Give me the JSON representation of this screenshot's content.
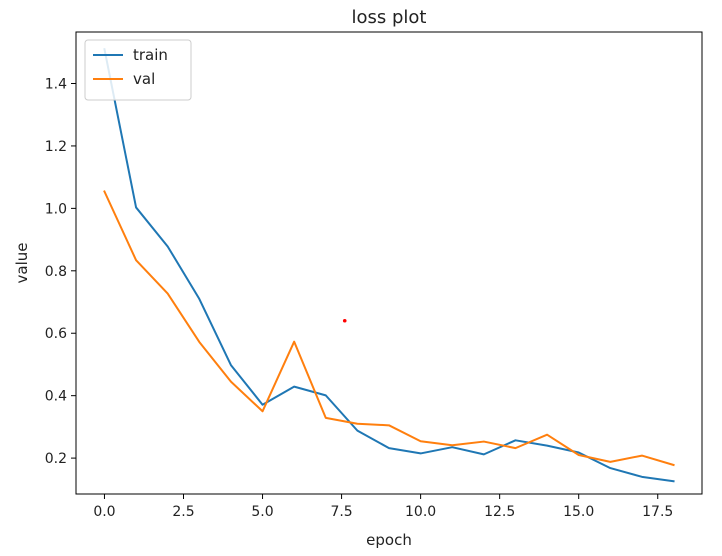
{
  "chart_data": {
    "type": "line",
    "title": "loss plot",
    "xlabel": "epoch",
    "ylabel": "value",
    "xlim": [
      -0.9,
      18.9
    ],
    "ylim": [
      0.085,
      1.565
    ],
    "x_ticks": [
      0.0,
      2.5,
      5.0,
      7.5,
      10.0,
      12.5,
      15.0,
      17.5
    ],
    "x_tick_labels": [
      "0.0",
      "2.5",
      "5.0",
      "7.5",
      "10.0",
      "12.5",
      "15.0",
      "17.5"
    ],
    "y_ticks": [
      0.2,
      0.4,
      0.6,
      0.8,
      1.0,
      1.2,
      1.4
    ],
    "y_tick_labels": [
      "0.2",
      "0.4",
      "0.6",
      "0.8",
      "1.0",
      "1.2",
      "1.4"
    ],
    "grid": false,
    "legend_position": "upper-left",
    "x": [
      0,
      1,
      2,
      3,
      4,
      5,
      6,
      7,
      8,
      9,
      10,
      11,
      12,
      13,
      14,
      15,
      16,
      17,
      18
    ],
    "series": [
      {
        "name": "train",
        "color": "#1f77b4",
        "values": [
          1.51,
          1.003,
          0.878,
          0.71,
          0.498,
          0.371,
          0.429,
          0.401,
          0.288,
          0.232,
          0.215,
          0.235,
          0.212,
          0.257,
          0.24,
          0.218,
          0.168,
          0.14,
          0.126
        ]
      },
      {
        "name": "val",
        "color": "#ff7f0e",
        "values": [
          1.054,
          0.834,
          0.727,
          0.572,
          0.445,
          0.35,
          0.573,
          0.329,
          0.31,
          0.305,
          0.254,
          0.241,
          0.253,
          0.232,
          0.275,
          0.21,
          0.188,
          0.208,
          0.178
        ]
      }
    ],
    "annotation_point": {
      "x": 7.6,
      "y": 0.64,
      "color": "#ff0000"
    }
  }
}
